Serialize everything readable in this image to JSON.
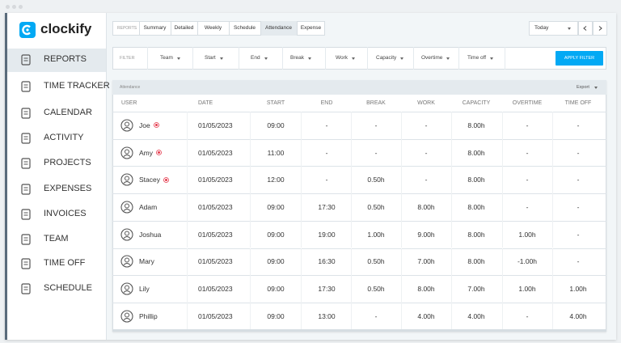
{
  "logo": "clockify",
  "nav": [
    "REPORTS",
    "TIME TRACKER",
    "CALENDAR",
    "ACTIVITY",
    "PROJECTS",
    "EXPENSES",
    "INVOICES",
    "TEAM",
    "TIME OFF",
    "SCHEDULE"
  ],
  "tabs": {
    "label": "REPORTS",
    "items": [
      "Summary",
      "Detailed",
      "Weekly",
      "Schedule",
      "Attendance",
      "Expense"
    ]
  },
  "date_range": "Today",
  "filter": {
    "label": "FILTER",
    "items": [
      "Team",
      "Start",
      "End",
      "Break",
      "Work",
      "Capacity",
      "Overtime",
      "Time off"
    ],
    "button": "APPLY FILTER"
  },
  "table": {
    "title": "Attendance",
    "export": "Export",
    "columns": [
      "USER",
      "DATE",
      "START",
      "END",
      "BREAK",
      "WORK",
      "CAPACITY",
      "OVERTIME",
      "TIME OFF"
    ],
    "rows": [
      [
        "Joe",
        "01/05/2023",
        "09:00",
        "-",
        "-",
        "-",
        "8.00h",
        "-",
        "-"
      ],
      [
        "Amy",
        "01/05/2023",
        "11:00",
        "-",
        "-",
        "-",
        "8.00h",
        "-",
        "-"
      ],
      [
        "Stacey",
        "01/05/2023",
        "12:00",
        "-",
        "0.50h",
        "-",
        "8.00h",
        "-",
        "-"
      ],
      [
        "Adam",
        "01/05/2023",
        "09:00",
        "17:30",
        "0.50h",
        "8.00h",
        "8.00h",
        "-",
        "-"
      ],
      [
        "Joshua",
        "01/05/2023",
        "09:00",
        "19:00",
        "1.00h",
        "9.00h",
        "8.00h",
        "1.00h",
        "-"
      ],
      [
        "Mary",
        "01/05/2023",
        "09:00",
        "16:30",
        "0.50h",
        "7.00h",
        "8.00h",
        "-1.00h",
        "-"
      ],
      [
        "Lily",
        "01/05/2023",
        "09:00",
        "17:30",
        "0.50h",
        "8.00h",
        "7.00h",
        "1.00h",
        "1.00h"
      ],
      [
        "Phillip",
        "01/05/2023",
        "09:00",
        "13:00",
        "-",
        "4.00h",
        "4.00h",
        "-",
        "4.00h"
      ]
    ]
  }
}
